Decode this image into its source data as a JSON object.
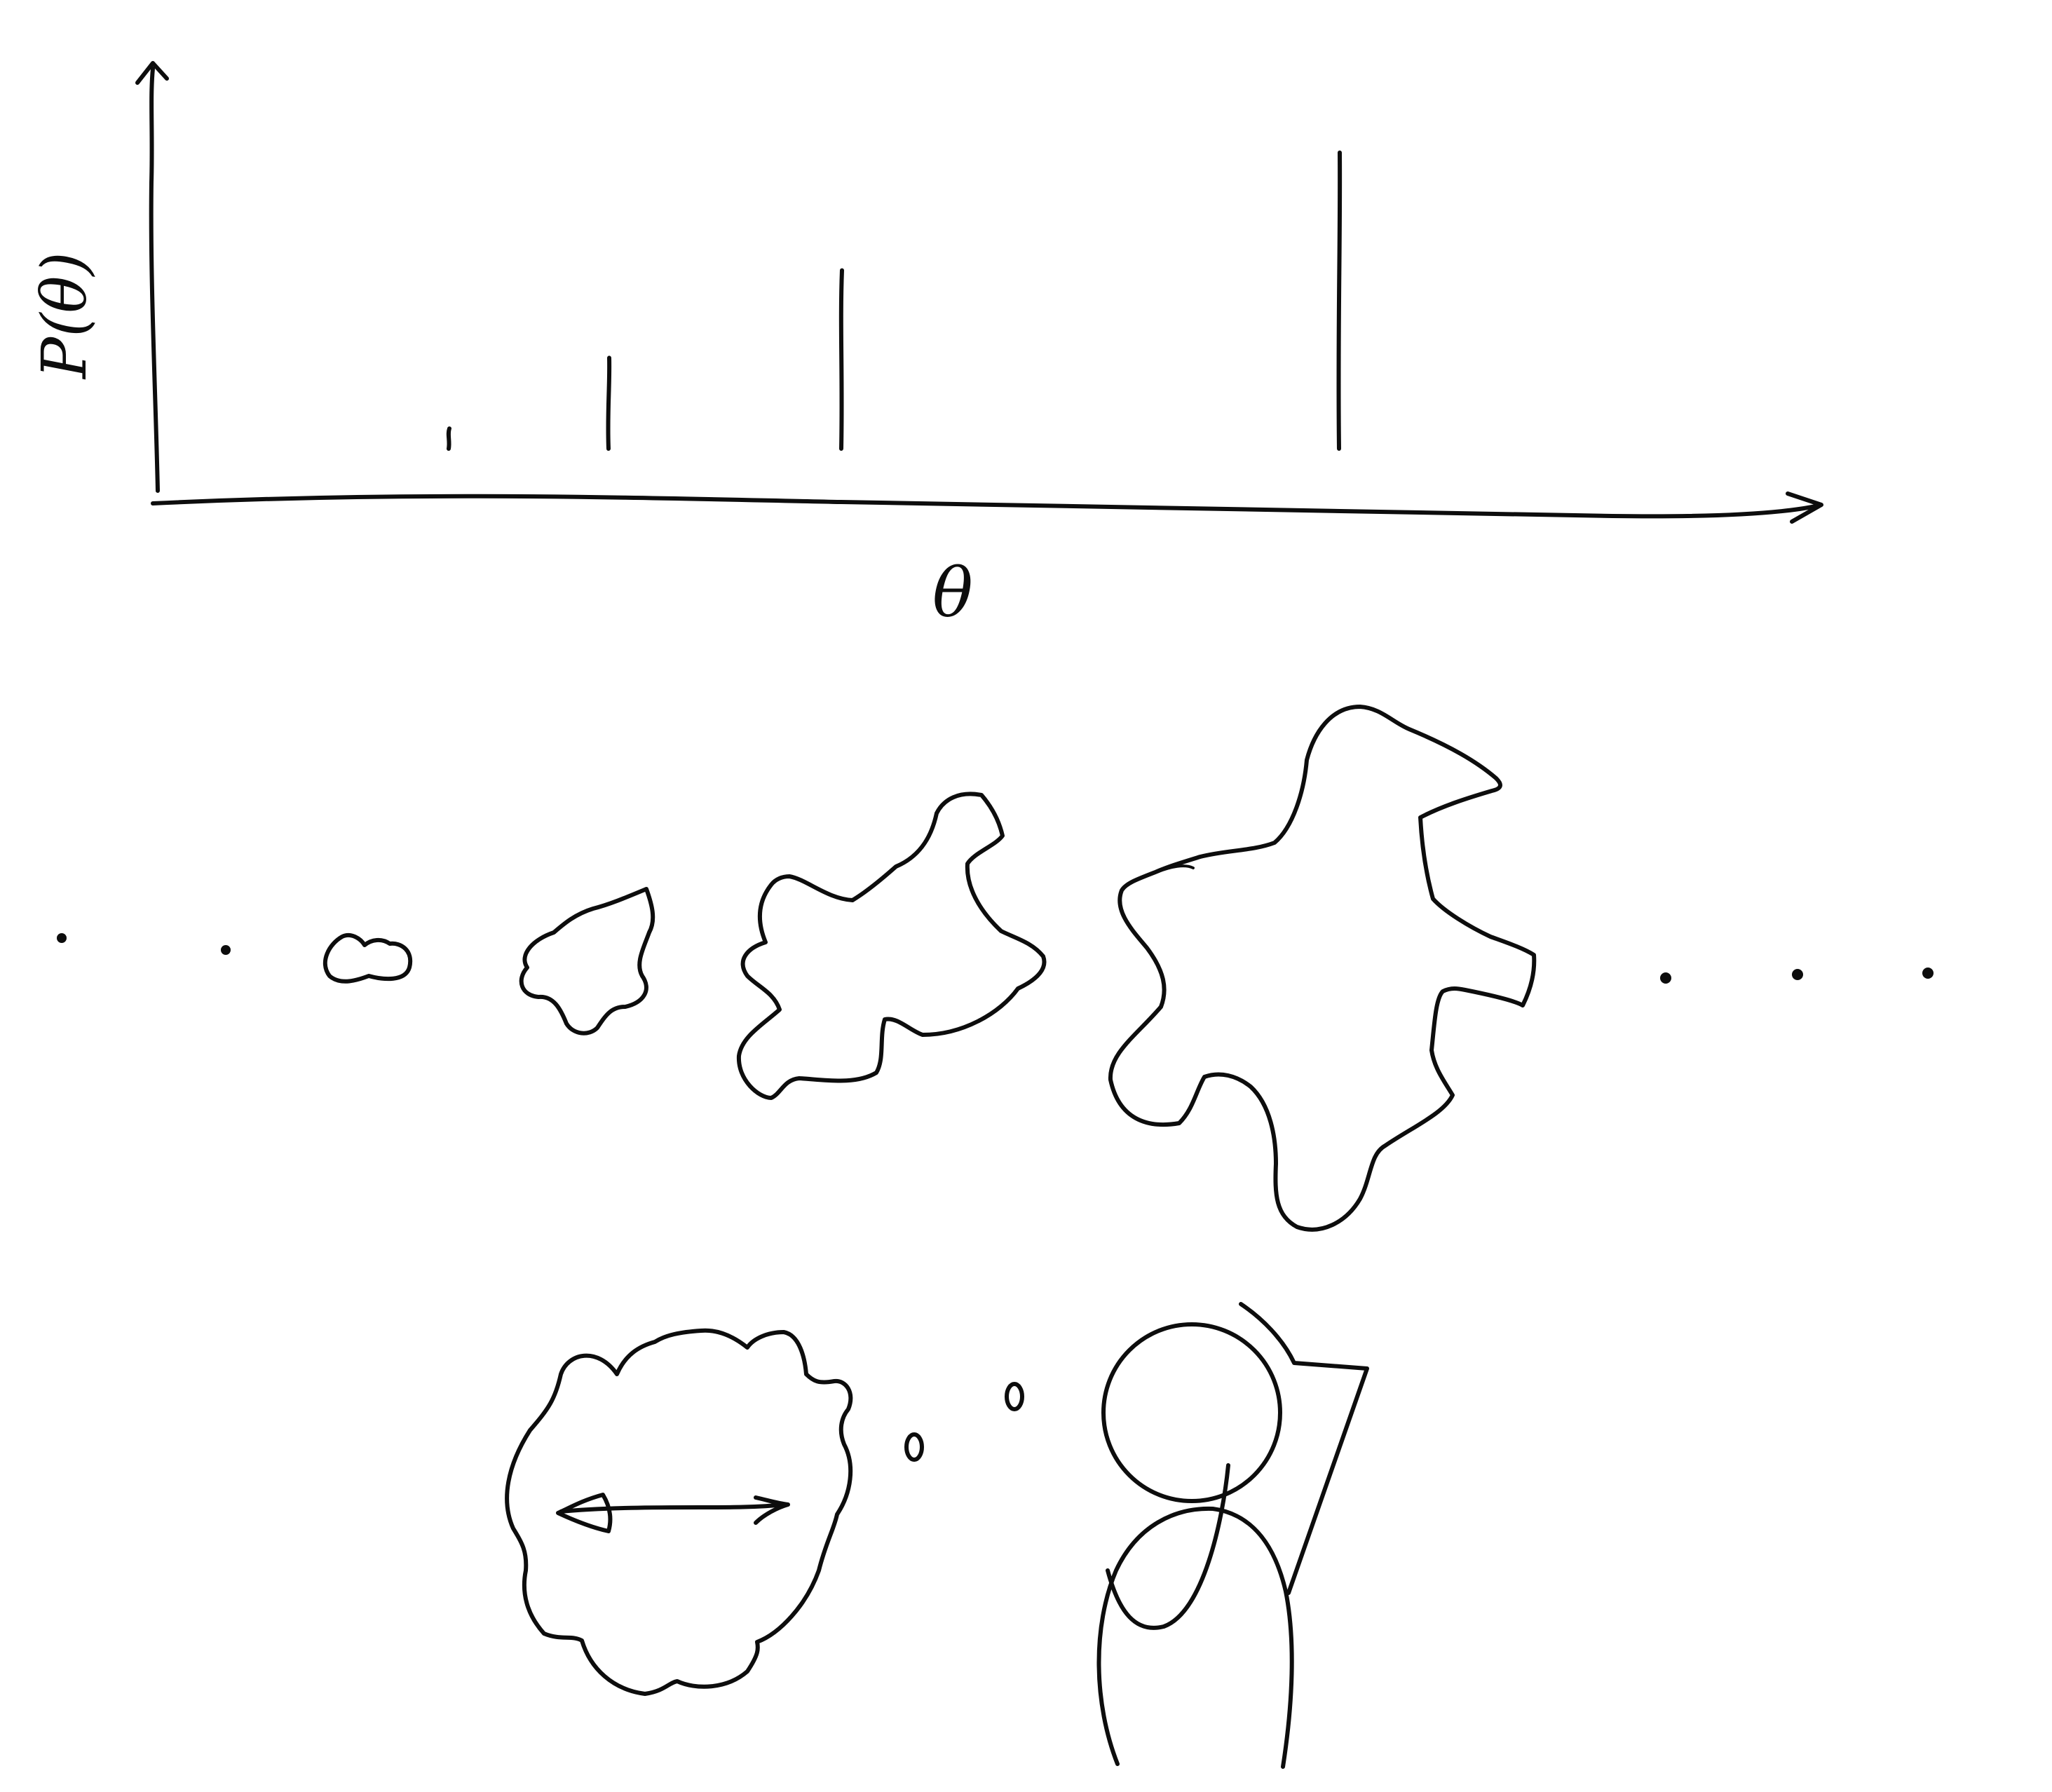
{
  "chart_data": {
    "type": "bar",
    "xlabel": "θ",
    "ylabel": "P(θ)",
    "values": [
      0.06,
      0.27,
      0.53,
      0.88
    ],
    "ylim": [
      0,
      1
    ],
    "grid": false
  },
  "ink_color": "#0d0d0d"
}
